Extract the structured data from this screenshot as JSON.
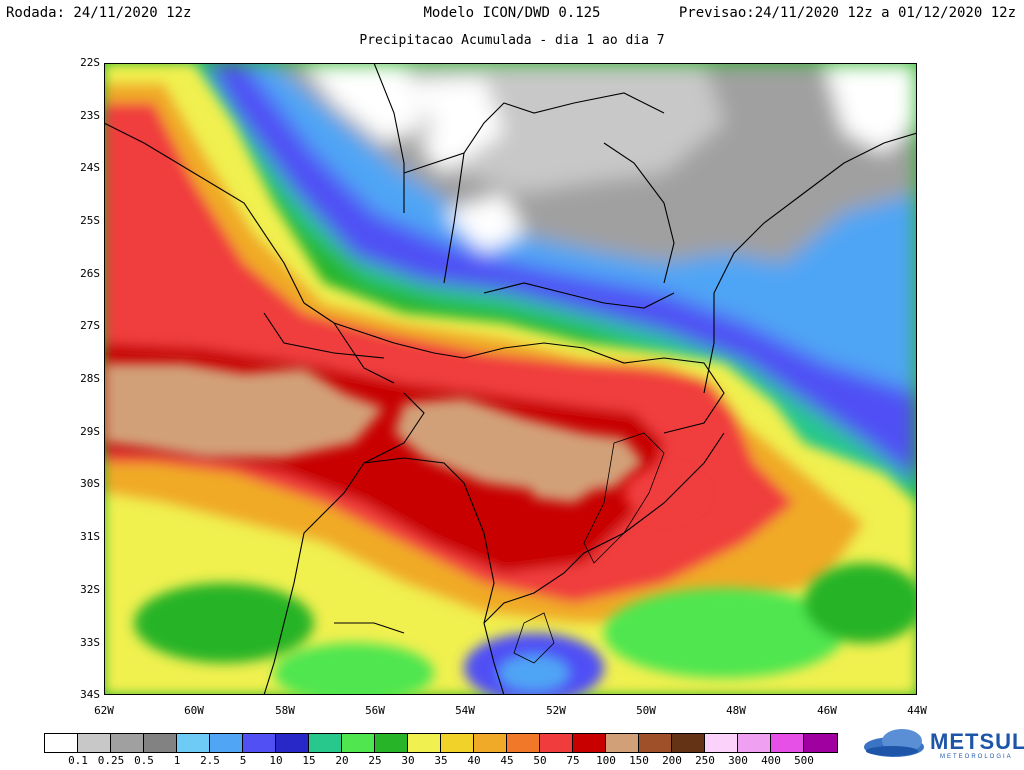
{
  "header": {
    "run": "Rodada: 24/11/2020 12z",
    "model": "Modelo ICON/DWD 0.125",
    "valid": "Previsao:24/11/2020 12z a 01/12/2020 12z",
    "subtitle": "Precipitacao Acumulada - dia 1 ao dia 7"
  },
  "axes": {
    "lat_labels": [
      "22S",
      "23S",
      "24S",
      "25S",
      "26S",
      "27S",
      "28S",
      "29S",
      "30S",
      "31S",
      "32S",
      "33S",
      "34S"
    ],
    "lon_labels": [
      "62W",
      "60W",
      "58W",
      "56W",
      "54W",
      "52W",
      "50W",
      "48W",
      "46W",
      "44W"
    ]
  },
  "colorbar": {
    "labels": [
      "0.1",
      "0.25",
      "0.5",
      "1",
      "2.5",
      "5",
      "10",
      "15",
      "20",
      "25",
      "30",
      "35",
      "40",
      "45",
      "50",
      "75",
      "100",
      "150",
      "200",
      "250",
      "300",
      "400",
      "500"
    ],
    "colors": [
      "#ffffff",
      "#c8c8c8",
      "#a0a0a0",
      "#828282",
      "#6ecbf5",
      "#50a5f5",
      "#5050f5",
      "#2828c8",
      "#28c88c",
      "#50e650",
      "#28b428",
      "#f0f050",
      "#f0d228",
      "#f0aa28",
      "#f07828",
      "#f03c3c",
      "#c80000",
      "#d2a078",
      "#a05028",
      "#643214",
      "#fad2fa",
      "#f0a0f0",
      "#e650e6",
      "#a000a0"
    ]
  },
  "logo": {
    "name": "METSUL",
    "tagline": "METEOROLOGIA"
  }
}
